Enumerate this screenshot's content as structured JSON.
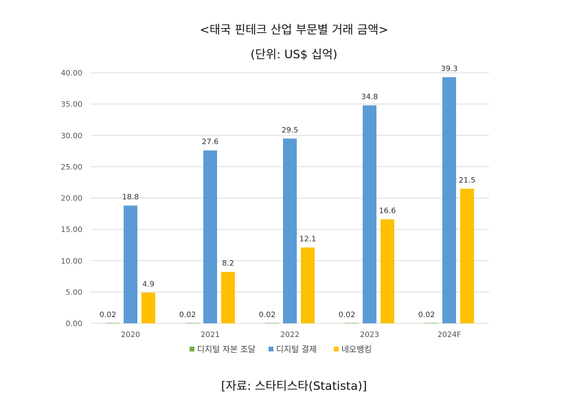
{
  "chart_data": {
    "type": "bar",
    "title": "<태국 핀테크 산업 부문별 거래 금액>",
    "subtitle": "(단위: US$ 십억)",
    "categories": [
      "2020",
      "2021",
      "2022",
      "2023",
      "2024F"
    ],
    "series": [
      {
        "name": "디지털 자본 조달",
        "color": "#70ad47",
        "values": [
          0.02,
          0.02,
          0.02,
          0.02,
          0.02
        ],
        "labels": [
          "0.02",
          "0.02",
          "0.02",
          "0.02",
          "0.02"
        ]
      },
      {
        "name": "디지털 결제",
        "color": "#5b9bd5",
        "values": [
          18.8,
          27.6,
          29.5,
          34.8,
          39.3
        ],
        "labels": [
          "18.8",
          "27.6",
          "29.5",
          "34.8",
          "39.3"
        ]
      },
      {
        "name": "네오뱅킹",
        "color": "#ffc000",
        "values": [
          4.9,
          8.2,
          12.1,
          16.6,
          21.5
        ],
        "labels": [
          "4.9",
          "8.2",
          "12.1",
          "16.6",
          "21.5"
        ]
      }
    ],
    "yticks": [
      "0.00",
      "5.00",
      "10.00",
      "15.00",
      "20.00",
      "25.00",
      "30.00",
      "35.00",
      "40.00"
    ],
    "ylim": [
      0,
      40
    ],
    "grid": true,
    "legend": "bottom",
    "source": "[자료: 스타티스타(Statista)]"
  }
}
